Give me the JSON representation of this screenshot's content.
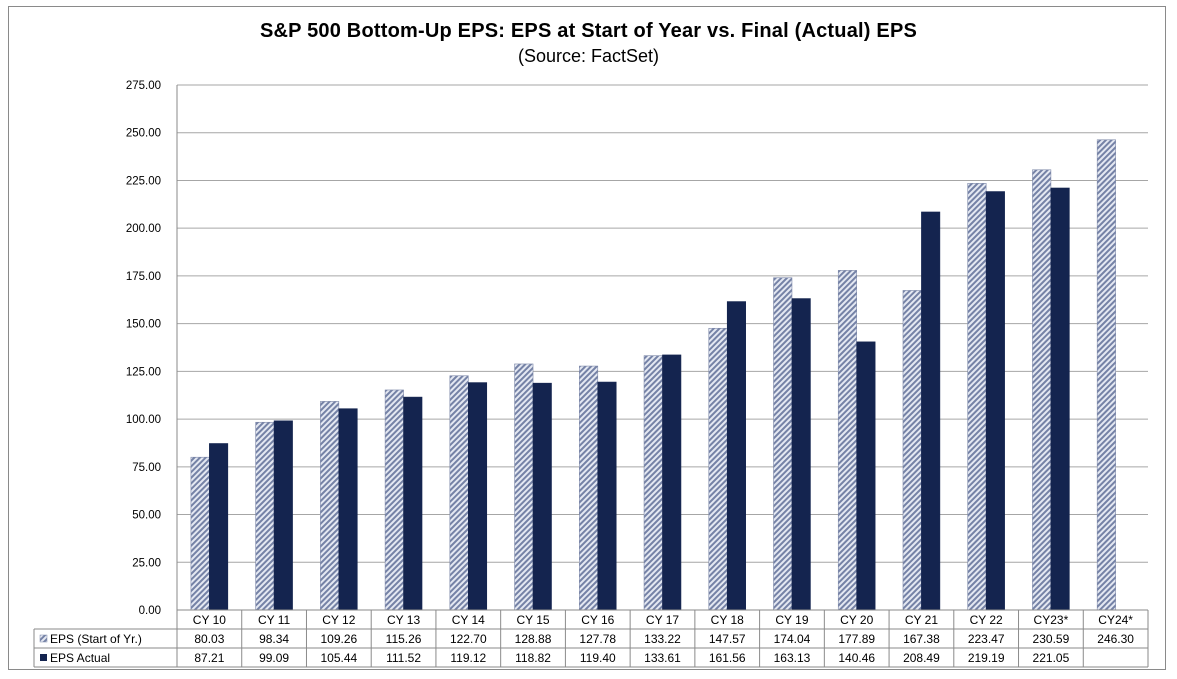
{
  "chart_data": {
    "type": "bar",
    "title": "S&P 500 Bottom-Up EPS: EPS at Start of Year vs. Final (Actual) EPS",
    "subtitle": "(Source: FactSet)",
    "categories": [
      "CY10",
      "CY11",
      "CY12",
      "CY13",
      "CY14",
      "CY15",
      "CY16",
      "CY17",
      "CY18",
      "CY19",
      "CY20",
      "CY21",
      "CY22",
      "CY23*",
      "CY24*"
    ],
    "category_labels": [
      "CY 10",
      "CY 11",
      "CY 12",
      "CY 13",
      "CY 14",
      "CY 15",
      "CY 16",
      "CY 17",
      "CY 18",
      "CY 19",
      "CY 20",
      "CY 21",
      "CY 22",
      "CY23*",
      "CY24*"
    ],
    "series": [
      {
        "name": "EPS (Start of Yr.)",
        "values": [
          80.03,
          98.34,
          109.26,
          115.26,
          122.7,
          128.88,
          127.78,
          133.22,
          147.57,
          174.04,
          177.89,
          167.38,
          223.47,
          230.59,
          246.3
        ],
        "display": [
          "80.03",
          "98.34",
          "109.26",
          "115.26",
          "122.70",
          "128.88",
          "127.78",
          "133.22",
          "147.57",
          "174.04",
          "177.89",
          "167.38",
          "223.47",
          "230.59",
          "246.30"
        ],
        "color": "#8e9ab8",
        "pattern": "diagonal-hatch"
      },
      {
        "name": "EPS Actual",
        "values": [
          87.21,
          99.09,
          105.44,
          111.52,
          119.12,
          118.82,
          119.4,
          133.61,
          161.56,
          163.13,
          140.46,
          208.49,
          219.19,
          221.05,
          null
        ],
        "display": [
          "87.21",
          "99.09",
          "105.44",
          "111.52",
          "119.12",
          "118.82",
          "119.40",
          "133.61",
          "161.56",
          "163.13",
          "140.46",
          "208.49",
          "219.19",
          "221.05",
          ""
        ],
        "color": "#14244f",
        "pattern": "solid"
      }
    ],
    "ylim": [
      0,
      275
    ],
    "yticks": [
      "0.00",
      "25.00",
      "50.00",
      "75.00",
      "100.00",
      "125.00",
      "150.00",
      "175.00",
      "200.00",
      "225.00",
      "250.00",
      "275.00"
    ],
    "grid": true,
    "legend": "data-table-left"
  }
}
